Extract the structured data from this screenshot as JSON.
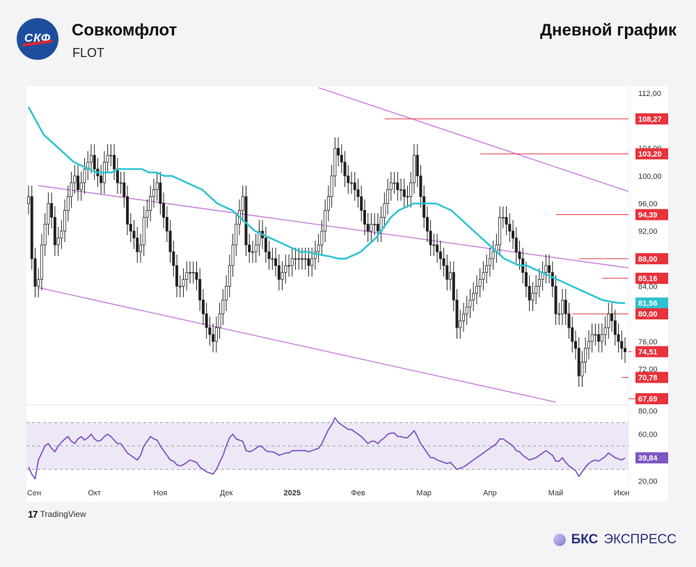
{
  "header": {
    "logo_text": "СКФ",
    "company": "Совкомфлот",
    "ticker": "FLOT",
    "chart_title": "Дневной график"
  },
  "footer": {
    "tradingview": "TradingView",
    "tv_mark": "17",
    "brand_bold": "БКС",
    "brand_rest": "ЭКСПРЕСС"
  },
  "colors": {
    "accent_red": "#e8323c",
    "ma_line": "#2ec4d2",
    "channel": "#c77ad9",
    "rsi_line": "#7e57c2",
    "rsi_band": "#ede7f6",
    "candle_up": "#ffffff",
    "candle_down": "#222222",
    "ma_label": "#2fc0cf"
  },
  "chart_data": {
    "type": "candlestick",
    "price_axis": {
      "ylim": [
        67.0,
        113.0
      ],
      "ticks": [
        "112,00",
        "108,00",
        "104,00",
        "100,00",
        "96,00",
        "92,00",
        "88,00",
        "84,00",
        "80,00",
        "76,00",
        "72,00"
      ]
    },
    "x_axis": {
      "labels": [
        "Сен",
        "Окт",
        "Ноя",
        "Дек",
        "2025",
        "Фев",
        "Мар",
        "Апр",
        "Май",
        "Июн"
      ],
      "label_index": [
        0,
        20,
        40,
        60,
        80,
        100,
        120,
        140,
        160,
        180
      ]
    },
    "price_labels": [
      {
        "text": "108,27",
        "value": 108.27,
        "color": "#e8323c",
        "start_index": 108
      },
      {
        "text": "103,20",
        "value": 103.2,
        "color": "#e8323c",
        "start_index": 137
      },
      {
        "text": "94,39",
        "value": 94.39,
        "color": "#e8323c",
        "start_index": 160
      },
      {
        "text": "88,00",
        "value": 88.0,
        "color": "#e8323c",
        "start_index": 167
      },
      {
        "text": "85,16",
        "value": 85.16,
        "color": "#e8323c",
        "start_index": 174
      },
      {
        "text": "81,56",
        "value": 81.56,
        "color": "#2fc0cf",
        "start_index": null
      },
      {
        "text": "80,00",
        "value": 80.0,
        "color": "#e8323c",
        "start_index": 165
      },
      {
        "text": "74,51",
        "value": 74.51,
        "color": "#e8323c",
        "start_index": 183
      },
      {
        "text": "70,78",
        "value": 70.78,
        "color": "#e8323c",
        "start_index": 180
      },
      {
        "text": "67,69",
        "value": 67.69,
        "color": "#e8323c",
        "start_index": 188
      }
    ],
    "channel_lines": [
      {
        "from": [
          3,
          98.6
        ],
        "to": [
          198,
          85.6
        ]
      },
      {
        "from": [
          3,
          83.8
        ],
        "to": [
          160,
          67.2
        ]
      },
      {
        "from": [
          88,
          112.8
        ],
        "to": [
          198,
          95.2
        ]
      }
    ],
    "close": [
      97,
      88,
      84,
      85,
      90,
      93,
      96,
      94,
      90,
      91,
      92,
      95,
      97,
      99,
      100,
      98,
      99,
      101,
      102,
      103,
      101,
      100,
      99,
      102,
      103,
      103,
      101,
      99,
      99,
      97,
      93,
      92,
      91,
      89,
      90,
      94,
      95,
      97,
      98,
      99,
      96,
      94,
      92,
      89,
      87,
      84,
      84,
      85,
      86,
      86,
      86,
      85,
      82,
      80,
      78,
      77,
      76,
      78,
      80,
      82,
      84,
      87,
      90,
      93,
      95,
      97,
      90,
      89,
      89,
      90,
      92,
      91,
      89,
      88,
      88,
      87,
      85,
      86,
      87,
      87,
      88,
      88,
      88,
      88,
      88,
      87,
      88,
      89,
      90,
      92,
      95,
      97,
      100,
      104,
      103,
      102,
      100,
      99,
      99,
      98,
      97,
      95,
      93,
      92,
      93,
      93,
      92,
      94,
      96,
      98,
      99,
      99,
      98,
      98,
      97,
      97,
      99,
      103,
      100,
      97,
      94,
      92,
      90,
      90,
      89,
      88,
      87,
      85,
      86,
      82,
      78,
      79,
      80,
      81,
      82,
      83,
      84,
      85,
      86,
      87,
      88,
      89,
      90,
      94,
      94,
      93,
      92,
      91,
      89,
      88,
      86,
      84,
      82,
      83,
      84,
      85,
      86,
      87,
      86,
      84,
      80,
      80,
      82,
      80,
      78,
      76,
      75,
      71,
      73,
      75,
      76,
      77,
      77,
      76,
      77,
      78,
      80,
      79,
      77,
      76,
      75,
      74.5
    ],
    "high_low_spread": 1.6,
    "moving_average": {
      "values": [
        110,
        108,
        106,
        105,
        104,
        103,
        102,
        101.5,
        101,
        100.5,
        100.5,
        100.5,
        101,
        101,
        101,
        101,
        100.5,
        100.5,
        100,
        100,
        99.5,
        99,
        98.5,
        98,
        97,
        96,
        95.5,
        95,
        94,
        93,
        92,
        91.5,
        91,
        90.5,
        90,
        89.5,
        89,
        89,
        88.7,
        88.5,
        88.3,
        88,
        88,
        88.5,
        89,
        90,
        91,
        92.5,
        94,
        95,
        95.5,
        96,
        96,
        96,
        96,
        95.5,
        95,
        94,
        93,
        92,
        91,
        90,
        89,
        88,
        87.5,
        87,
        87,
        86.5,
        86,
        85.5,
        85,
        84.5,
        84,
        83.5,
        83,
        82.5,
        82,
        81.8,
        81.6,
        81.56
      ]
    },
    "rsi": {
      "ylim": [
        15.0,
        85.0
      ],
      "ticks": [
        "80,00",
        "60,00",
        "40,00",
        "20,00"
      ],
      "levels": [
        70,
        50,
        30
      ],
      "band": [
        30,
        70
      ],
      "last": "39,84",
      "values": [
        32,
        26,
        22,
        38,
        44,
        50,
        52,
        48,
        45,
        50,
        53,
        56,
        58,
        54,
        52,
        56,
        58,
        55,
        57,
        60,
        56,
        54,
        55,
        58,
        60,
        58,
        55,
        52,
        52,
        48,
        44,
        42,
        40,
        38,
        42,
        50,
        54,
        58,
        56,
        55,
        50,
        46,
        42,
        38,
        37,
        34,
        33,
        34,
        36,
        38,
        37,
        36,
        32,
        30,
        28,
        27,
        26,
        30,
        36,
        42,
        50,
        57,
        60,
        56,
        55,
        54,
        46,
        45,
        46,
        48,
        50,
        49,
        46,
        45,
        45,
        44,
        42,
        43,
        44,
        44,
        46,
        46,
        46,
        46,
        46,
        45,
        46,
        47,
        48,
        52,
        58,
        64,
        68,
        74,
        70,
        68,
        66,
        64,
        64,
        62,
        60,
        58,
        55,
        52,
        54,
        54,
        52,
        55,
        57,
        60,
        61,
        61,
        58,
        58,
        57,
        57,
        60,
        63,
        58,
        52,
        48,
        44,
        40,
        40,
        38,
        37,
        36,
        35,
        36,
        33,
        30,
        31,
        32,
        34,
        36,
        38,
        40,
        42,
        44,
        46,
        48,
        50,
        52,
        56,
        56,
        54,
        52,
        50,
        46,
        45,
        42,
        40,
        38,
        39,
        40,
        42,
        44,
        46,
        44,
        42,
        37,
        37,
        40,
        36,
        33,
        31,
        29,
        24,
        28,
        32,
        35,
        37,
        38,
        37,
        39,
        41,
        44,
        42,
        40,
        39,
        38,
        39.84
      ]
    }
  }
}
